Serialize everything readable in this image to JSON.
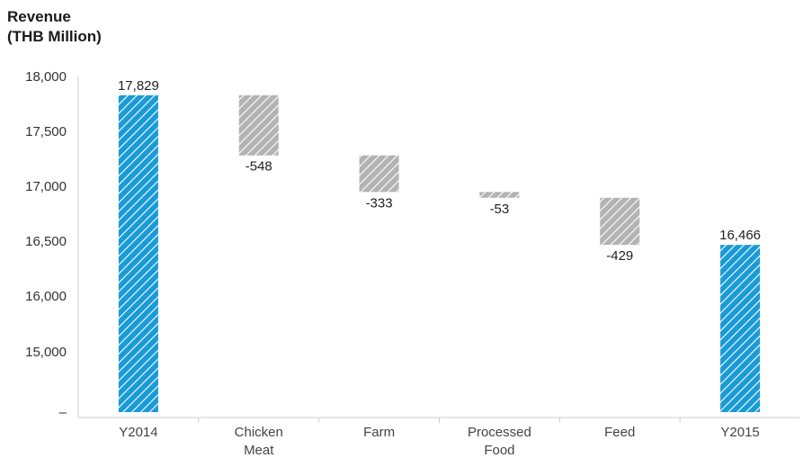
{
  "chart_data": {
    "type": "waterfall",
    "title": "",
    "ylabel": [
      "Revenue",
      "(THB Million)"
    ],
    "xlabel": "",
    "ylim": [
      15000,
      18000
    ],
    "y_ticks": [
      "18,000",
      "17,500",
      "17,000",
      "16,500",
      "16,000",
      "15,000",
      "–"
    ],
    "y_tick_values": [
      18000,
      17500,
      17000,
      16500,
      16000,
      15000,
      14500
    ],
    "axis_break_note": "15,000 to 16,000 spacing compressed (broken axis)",
    "categories": [
      {
        "label": [
          "Y2014"
        ],
        "kind": "total",
        "value": 17829,
        "value_label": "17,829"
      },
      {
        "label": [
          "Chicken",
          "Meat"
        ],
        "kind": "change",
        "value": -548,
        "value_label": "-548"
      },
      {
        "label": [
          "Farm"
        ],
        "kind": "change",
        "value": -333,
        "value_label": "-333"
      },
      {
        "label": [
          "Processed",
          "Food"
        ],
        "kind": "change",
        "value": -53,
        "value_label": "-53"
      },
      {
        "label": [
          "Feed"
        ],
        "kind": "change",
        "value": -429,
        "value_label": "-429"
      },
      {
        "label": [
          "Y2015"
        ],
        "kind": "total",
        "value": 16466,
        "value_label": "16,466"
      }
    ],
    "colors": {
      "total": "#1a9bd7",
      "change": "#b3b3b3",
      "hatch": "#ffffff"
    },
    "grid": false,
    "legend": "none"
  }
}
